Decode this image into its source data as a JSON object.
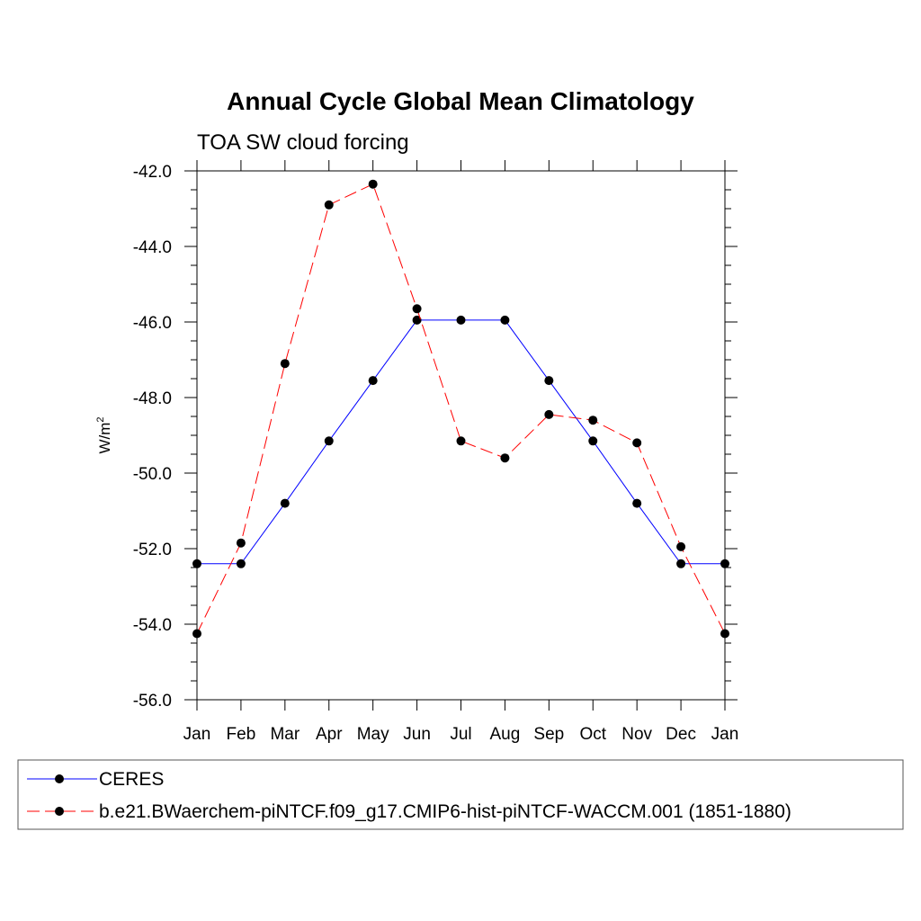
{
  "chart_data": {
    "type": "line",
    "title": "Annual Cycle Global Mean Climatology",
    "subtitle": "TOA SW cloud forcing",
    "ylabel_base": "W/m",
    "ylabel_sup": "2",
    "xlabel": "",
    "categories": [
      "Jan",
      "Feb",
      "Mar",
      "Apr",
      "May",
      "Jun",
      "Jul",
      "Aug",
      "Sep",
      "Oct",
      "Nov",
      "Dec",
      "Jan"
    ],
    "ylim": [
      -56.0,
      -42.0
    ],
    "yticks": [
      -56.0,
      -54.0,
      -52.0,
      -50.0,
      -48.0,
      -46.0,
      -44.0,
      -42.0
    ],
    "ytick_labels": [
      "-56.0",
      "-54.0",
      "-52.0",
      "-50.0",
      "-48.0",
      "-46.0",
      "-44.0",
      "-42.0"
    ],
    "legend_placement": "bottom",
    "series": [
      {
        "name": "CERES",
        "color": "#0000ff",
        "dash": "solid",
        "marker": "circle",
        "values": [
          -52.4,
          -52.4,
          -50.8,
          -49.15,
          -47.55,
          -45.95,
          -45.95,
          -45.95,
          -47.55,
          -49.15,
          -50.8,
          -52.4,
          -52.4
        ]
      },
      {
        "name": "b.e21.BWaerchem-piNTCF.f09_g17.CMIP6-hist-piNTCF-WACCM.001 (1851-1880)",
        "color": "#ff0000",
        "dash": "dashed",
        "marker": "circle",
        "values": [
          -54.25,
          -51.85,
          -47.1,
          -42.9,
          -42.35,
          -45.65,
          -49.15,
          -49.6,
          -48.45,
          -48.6,
          -49.2,
          -51.95,
          -54.25
        ]
      }
    ]
  }
}
